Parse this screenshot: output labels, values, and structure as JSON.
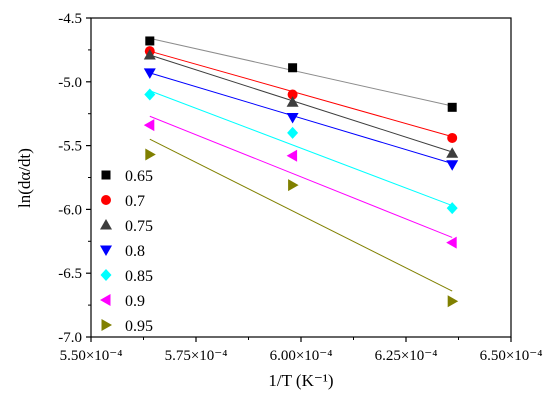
{
  "chart_data": {
    "type": "scatter",
    "xlabel": "1/T (K⁻¹)",
    "ylabel": "ln(dα/dt)",
    "xlim": [
      0.00055,
      0.00065
    ],
    "ylim": [
      -7.0,
      -4.5
    ],
    "x_ticks": [
      0.00055,
      0.000575,
      0.0006,
      0.000625,
      0.00065
    ],
    "x_tick_labels": [
      "5.50×10⁻⁴",
      "5.75×10⁻⁴",
      "6.00×10⁻⁴",
      "6.25×10⁻⁴",
      "6.50×10⁻⁴"
    ],
    "y_ticks": [
      -7.0,
      -6.5,
      -6.0,
      -5.5,
      -5.0,
      -4.5
    ],
    "y_tick_labels": [
      "-7.0",
      "-6.5",
      "-6.0",
      "-5.5",
      "-5.0",
      "-4.5"
    ],
    "legend_placement": "bottom-left",
    "grid": false,
    "x": [
      0.000564,
      0.000598,
      0.000636
    ],
    "series": [
      {
        "name": "0.65",
        "marker": "square",
        "color": "#000000",
        "line_color": "#8c8c8c",
        "values": [
          -4.68,
          -4.89,
          -5.2
        ],
        "fit": [
          -4.66,
          -5.19
        ]
      },
      {
        "name": "0.7",
        "marker": "circle",
        "color": "#ff0000",
        "line_color": "#ff0000",
        "values": [
          -4.76,
          -5.1,
          -5.44
        ],
        "fit": [
          -4.76,
          -5.43
        ]
      },
      {
        "name": "0.75",
        "marker": "triangle-up",
        "color": "#3d3d3d",
        "line_color": "#3d3d3d",
        "values": [
          -4.79,
          -5.16,
          -5.56
        ],
        "fit": [
          -4.79,
          -5.55
        ]
      },
      {
        "name": "0.8",
        "marker": "triangle-down",
        "color": "#0000ff",
        "line_color": "#0000ff",
        "values": [
          -4.93,
          -5.28,
          -5.65
        ],
        "fit": [
          -4.93,
          -5.64
        ]
      },
      {
        "name": "0.85",
        "marker": "diamond",
        "color": "#00ffff",
        "line_color": "#00ffff",
        "values": [
          -5.1,
          -5.4,
          -5.99
        ],
        "fit": [
          -5.07,
          -5.97
        ]
      },
      {
        "name": "0.9",
        "marker": "triangle-left",
        "color": "#ff00ff",
        "line_color": "#ff00ff",
        "values": [
          -5.34,
          -5.58,
          -6.26
        ],
        "fit": [
          -5.27,
          -6.22
        ]
      },
      {
        "name": "0.95",
        "marker": "triangle-right",
        "color": "#808000",
        "line_color": "#808000",
        "values": [
          -5.57,
          -5.81,
          -6.72
        ],
        "fit": [
          -5.45,
          -6.64
        ]
      }
    ]
  }
}
